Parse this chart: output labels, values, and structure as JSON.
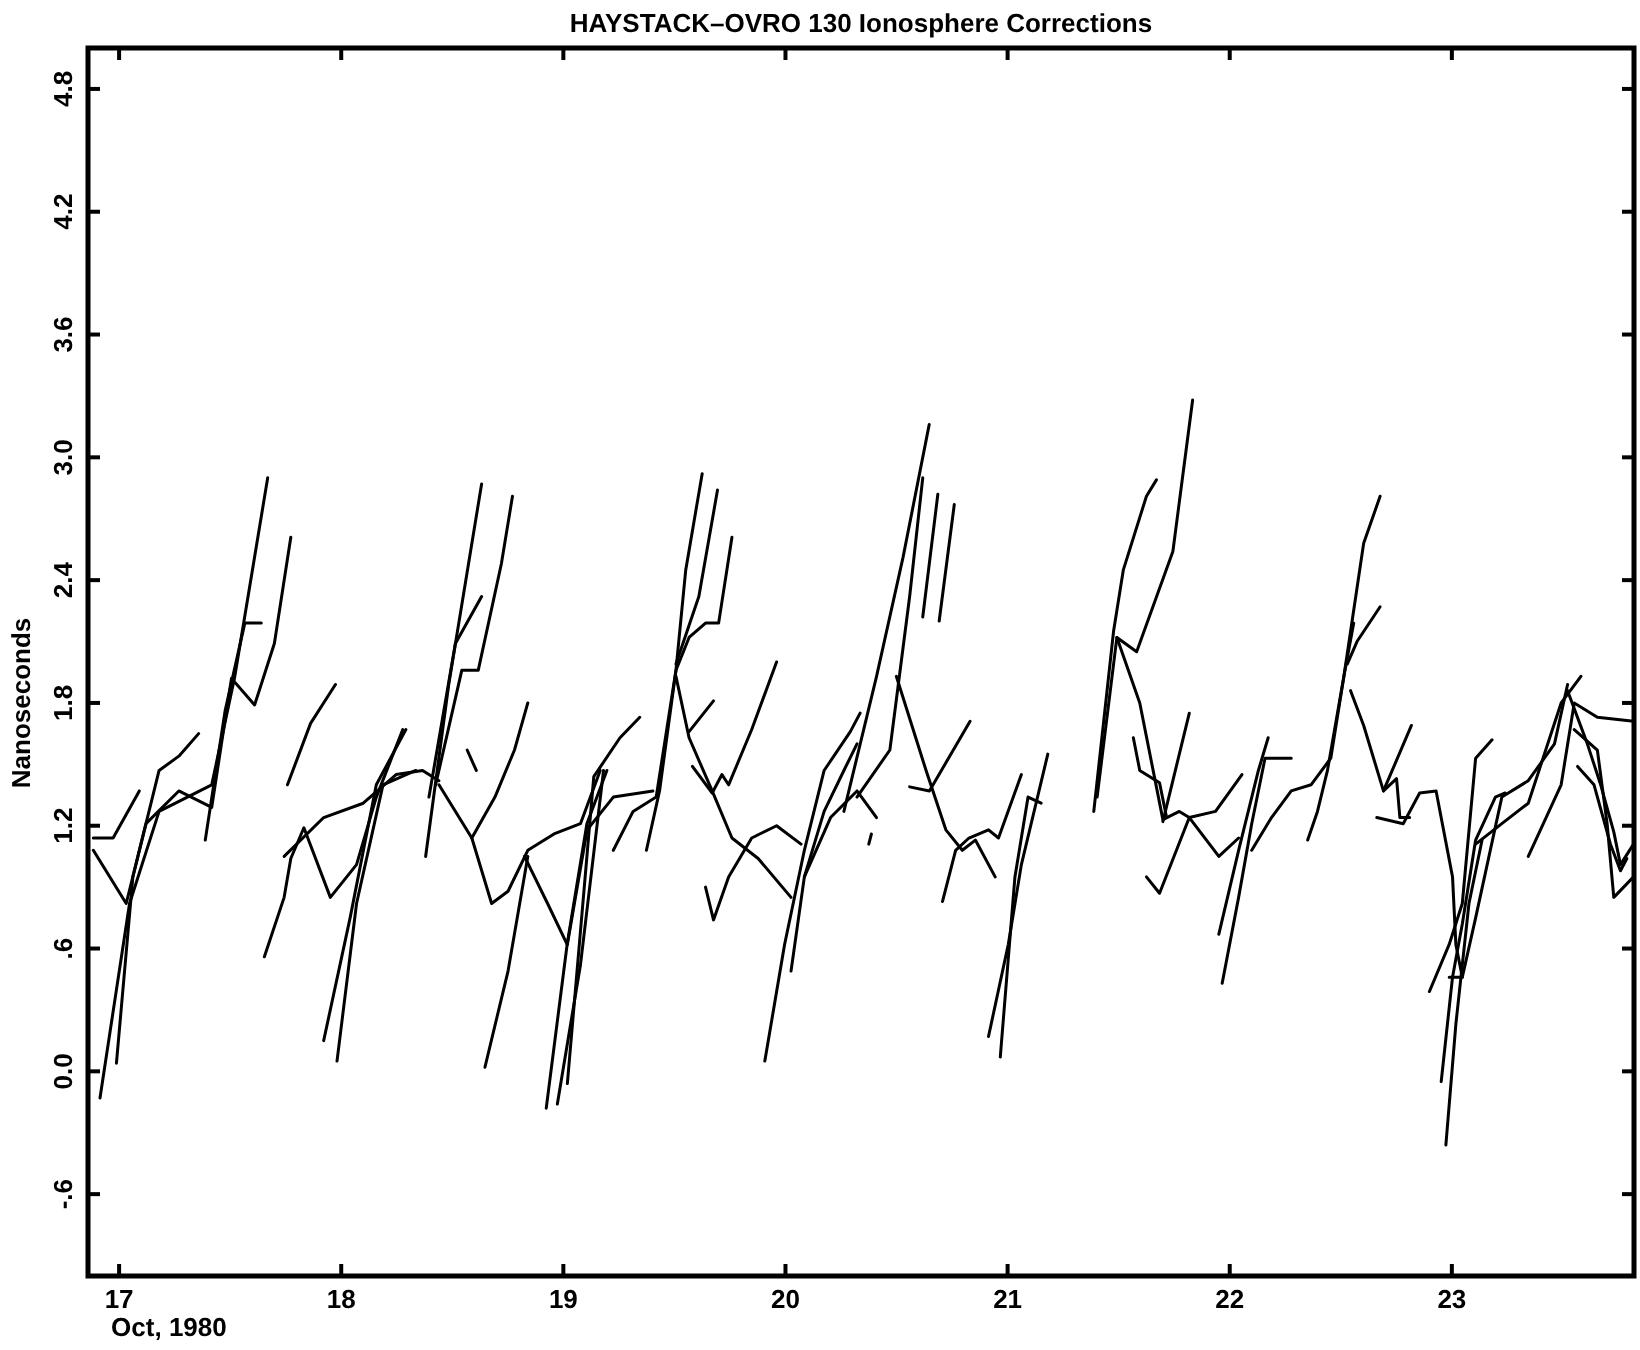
{
  "chart_data": {
    "type": "line",
    "title": "HAYSTACK–OVRO 130 Ionosphere Corrections",
    "xlabel": "Oct, 1980",
    "ylabel": "Nanoseconds",
    "xlim": [
      16.86,
      23.82
    ],
    "ylim": [
      -1.0,
      5.0
    ],
    "xticks": [
      17,
      18,
      19,
      20,
      21,
      22,
      23
    ],
    "yticks": [
      {
        "value": -0.6,
        "label": "-.6"
      },
      {
        "value": 0,
        "label": "0.0"
      },
      {
        "value": 0.6,
        "label": ".6"
      },
      1.2,
      1.8,
      2.4,
      {
        "value": 3,
        "label": "3.0"
      },
      3.6,
      4.2,
      4.8
    ],
    "series": [
      {
        "color": "#000000",
        "x": [
          16.914,
          17.047,
          17.18,
          17.417,
          17.521,
          17.669
        ],
        "values": [
          -0.13,
          0.82,
          1.27,
          1.4,
          1.93,
          2.9
        ]
      },
      {
        "color": "#000000",
        "x": [
          16.884,
          16.973,
          17.091
        ],
        "values": [
          1.14,
          1.14,
          1.37
        ]
      },
      {
        "color": "#000000",
        "x": [
          16.884,
          17.032,
          17.121,
          17.269,
          17.417,
          17.506,
          17.61,
          17.699,
          17.773
        ],
        "values": [
          1.08,
          0.82,
          1.21,
          1.37,
          1.29,
          1.92,
          1.79,
          2.09,
          2.61
        ]
      },
      {
        "color": "#000000",
        "x": [
          16.988,
          17.062,
          17.18,
          17.269,
          17.358
        ],
        "values": [
          0.04,
          0.95,
          1.47,
          1.54,
          1.65
        ]
      },
      {
        "color": "#000000",
        "x": [
          17.388,
          17.477,
          17.566,
          17.64
        ],
        "values": [
          1.13,
          1.76,
          2.19,
          2.19
        ]
      },
      {
        "color": "#000000",
        "x": [
          17.758,
          17.862,
          17.974
        ],
        "values": [
          1.4,
          1.7,
          1.89
        ]
      },
      {
        "color": "#000000",
        "x": [
          17.654,
          17.743,
          17.773,
          17.832,
          17.951,
          18.069,
          18.158,
          18.277
        ],
        "values": [
          0.56,
          0.85,
          1.04,
          1.19,
          0.85,
          1.01,
          1.34,
          1.67
        ]
      },
      {
        "color": "#000000",
        "x": [
          17.743,
          17.921,
          18.099,
          18.247,
          18.366,
          18.44
        ],
        "values": [
          1.05,
          1.24,
          1.31,
          1.45,
          1.47,
          1.42
        ]
      },
      {
        "color": "#000000",
        "x": [
          17.981,
          18.069,
          18.188,
          18.336
        ],
        "values": [
          0.05,
          0.82,
          1.4,
          1.47
        ]
      },
      {
        "color": "#000000",
        "x": [
          17.921,
          18.04,
          18.158,
          18.291
        ],
        "values": [
          0.15,
          0.75,
          1.4,
          1.67
        ]
      },
      {
        "color": "#000000",
        "x": [
          18.38,
          18.484,
          18.632
        ],
        "values": [
          1.05,
          1.89,
          2.87
        ]
      },
      {
        "color": "#000000",
        "x": [
          18.395,
          18.514,
          18.632
        ],
        "values": [
          1.34,
          2.09,
          2.32
        ]
      },
      {
        "color": "#000000",
        "x": [
          18.425,
          18.543,
          18.617,
          18.721,
          18.771
        ],
        "values": [
          1.4,
          1.96,
          1.96,
          2.48,
          2.81
        ]
      },
      {
        "color": "#000000",
        "x": [
          18.44,
          18.588,
          18.677,
          18.751,
          18.84,
          18.958,
          19.077,
          19.166
        ],
        "values": [
          1.4,
          1.14,
          0.82,
          0.88,
          1.08,
          1.16,
          1.21,
          1.47
        ]
      },
      {
        "color": "#000000",
        "x": [
          18.588,
          18.692,
          18.78,
          18.84
        ],
        "values": [
          1.14,
          1.34,
          1.57,
          1.8
        ]
      },
      {
        "color": "#000000",
        "x": [
          18.567,
          18.608
        ],
        "values": [
          1.57,
          1.47
        ]
      },
      {
        "color": "#000000",
        "x": [
          18.647,
          18.751,
          18.84
        ],
        "values": [
          0.02,
          0.49,
          1.05
        ]
      },
      {
        "color": "#000000",
        "x": [
          18.825,
          18.929,
          19.017
        ],
        "values": [
          1.05,
          0.82,
          0.62
        ]
      },
      {
        "color": "#000000",
        "x": [
          18.923,
          19.017,
          19.106,
          19.196
        ],
        "values": [
          -0.18,
          0.62,
          1.21,
          1.47
        ]
      },
      {
        "color": "#000000",
        "x": [
          18.973,
          19.077,
          19.181
        ],
        "values": [
          -0.16,
          0.52,
          1.47
        ]
      },
      {
        "color": "#000000",
        "x": [
          19.018,
          19.137,
          19.255,
          19.344
        ],
        "values": [
          -0.06,
          1.44,
          1.63,
          1.73
        ]
      },
      {
        "color": "#000000",
        "x": [
          19.018,
          19.107,
          19.225,
          19.403
        ],
        "values": [
          0.62,
          1.18,
          1.34,
          1.37
        ]
      },
      {
        "color": "#000000",
        "x": [
          19.225,
          19.314,
          19.418,
          19.507,
          19.551,
          19.625
        ],
        "values": [
          1.08,
          1.27,
          1.34,
          1.96,
          2.45,
          2.92
        ]
      },
      {
        "color": "#000000",
        "x": [
          19.374,
          19.433,
          19.507,
          19.566,
          19.64,
          19.699,
          19.759
        ],
        "values": [
          1.08,
          1.37,
          1.96,
          2.12,
          2.19,
          2.19,
          2.61
        ]
      },
      {
        "color": "#000000",
        "x": [
          19.507,
          19.61,
          19.694
        ],
        "values": [
          1.99,
          2.32,
          2.84
        ]
      },
      {
        "color": "#000000",
        "x": [
          19.507,
          19.566,
          19.67,
          19.759,
          19.877,
          20.025
        ],
        "values": [
          1.93,
          1.63,
          1.37,
          1.14,
          1.04,
          0.85
        ]
      },
      {
        "color": "#000000",
        "x": [
          19.566,
          19.676
        ],
        "values": [
          1.66,
          1.81
        ]
      },
      {
        "color": "#000000",
        "x": [
          19.581,
          19.67,
          19.714,
          19.744,
          19.848,
          19.96
        ],
        "values": [
          1.49,
          1.36,
          1.45,
          1.4,
          1.67,
          2.0
        ]
      },
      {
        "color": "#000000",
        "x": [
          19.64,
          19.676,
          19.744,
          19.848,
          19.96,
          20.07
        ],
        "values": [
          0.9,
          0.74,
          0.95,
          1.14,
          1.2,
          1.11
        ]
      },
      {
        "color": "#000000",
        "x": [
          19.907,
          19.996,
          20.085,
          20.174,
          20.292,
          20.336
        ],
        "values": [
          0.05,
          0.62,
          1.08,
          1.47,
          1.66,
          1.75
        ]
      },
      {
        "color": "#000000",
        "x": [
          20.025,
          20.085,
          20.174,
          20.263,
          20.322
        ],
        "values": [
          0.49,
          0.95,
          1.27,
          1.47,
          1.6
        ]
      },
      {
        "color": "#000000",
        "x": [
          20.085,
          20.203,
          20.322,
          20.41
        ],
        "values": [
          0.95,
          1.24,
          1.37,
          1.24
        ]
      },
      {
        "color": "#000000",
        "x": [
          20.263,
          20.41,
          20.529,
          20.647
        ],
        "values": [
          1.27,
          1.93,
          2.51,
          3.16
        ]
      },
      {
        "color": "#000000",
        "x": [
          20.322,
          20.47,
          20.559,
          20.618
        ],
        "values": [
          1.34,
          1.57,
          2.32,
          2.9
        ]
      },
      {
        "color": "#000000",
        "x": [
          20.618,
          20.686
        ],
        "values": [
          2.22,
          2.82
        ]
      },
      {
        "color": "#000000",
        "x": [
          20.692,
          20.76
        ],
        "values": [
          2.2,
          2.77
        ]
      },
      {
        "color": "#000000",
        "x": [
          20.499,
          20.633,
          20.722,
          20.796,
          20.855,
          20.944
        ],
        "values": [
          1.93,
          1.47,
          1.18,
          1.08,
          1.13,
          0.95
        ]
      },
      {
        "color": "#000000",
        "x": [
          20.559,
          20.648,
          20.831
        ],
        "values": [
          1.39,
          1.37,
          1.71
        ]
      },
      {
        "color": "#000000",
        "x": [
          20.707,
          20.766,
          20.826,
          20.914,
          20.959,
          21.062
        ],
        "values": [
          0.83,
          1.08,
          1.14,
          1.18,
          1.14,
          1.45
        ]
      },
      {
        "color": "#000000",
        "x": [
          20.375,
          20.387
        ],
        "values": [
          1.11,
          1.16
        ]
      },
      {
        "color": "#000000",
        "x": [
          20.914,
          21.003,
          21.062,
          21.181
        ],
        "values": [
          0.17,
          0.62,
          1.01,
          1.55
        ]
      },
      {
        "color": "#000000",
        "x": [
          20.967,
          21.033,
          21.092,
          21.151
        ],
        "values": [
          0.07,
          0.95,
          1.34,
          1.31
        ]
      },
      {
        "color": "#000000",
        "x": [
          21.388,
          21.477,
          21.521,
          21.625,
          21.67
        ],
        "values": [
          1.27,
          2.15,
          2.45,
          2.81,
          2.89
        ]
      },
      {
        "color": "#000000",
        "x": [
          21.403,
          21.492,
          21.581,
          21.744,
          21.833
        ],
        "values": [
          1.34,
          2.12,
          2.05,
          2.54,
          3.28
        ]
      },
      {
        "color": "#000000",
        "x": [
          21.492,
          21.595,
          21.699,
          21.773,
          21.818,
          21.936,
          22.055
        ],
        "values": [
          2.12,
          1.8,
          1.23,
          1.27,
          1.24,
          1.27,
          1.45
        ]
      },
      {
        "color": "#000000",
        "x": [
          21.566,
          21.595,
          21.684,
          21.714
        ],
        "values": [
          1.63,
          1.47,
          1.41,
          1.25
        ]
      },
      {
        "color": "#000000",
        "x": [
          21.625,
          21.684,
          21.818,
          21.951,
          22.04
        ],
        "values": [
          0.95,
          0.87,
          1.24,
          1.05,
          1.14
        ]
      },
      {
        "color": "#000000",
        "x": [
          21.699,
          21.818
        ],
        "values": [
          1.22,
          1.75
        ]
      },
      {
        "color": "#000000",
        "x": [
          21.951,
          22.04,
          22.129,
          22.173
        ],
        "values": [
          0.67,
          1.08,
          1.47,
          1.63
        ]
      },
      {
        "color": "#000000",
        "x": [
          21.966,
          22.04,
          22.099,
          22.159,
          22.277
        ],
        "values": [
          0.43,
          0.85,
          1.21,
          1.53,
          1.53
        ]
      },
      {
        "color": "#000000",
        "x": [
          22.099,
          22.188,
          22.277,
          22.366,
          22.455,
          22.514,
          22.558
        ],
        "values": [
          1.08,
          1.24,
          1.37,
          1.4,
          1.53,
          1.93,
          2.19
        ]
      },
      {
        "color": "#000000",
        "x": [
          22.351,
          22.395,
          22.44,
          22.514,
          22.603,
          22.677
        ],
        "values": [
          1.13,
          1.27,
          1.47,
          1.93,
          2.58,
          2.81
        ]
      },
      {
        "color": "#000000",
        "x": [
          22.529,
          22.573,
          22.677
        ],
        "values": [
          1.99,
          2.1,
          2.27
        ]
      },
      {
        "color": "#000000",
        "x": [
          22.544,
          22.603,
          22.692,
          22.751,
          22.766,
          22.81
        ],
        "values": [
          1.86,
          1.69,
          1.37,
          1.43,
          1.24,
          1.24
        ]
      },
      {
        "color": "#000000",
        "x": [
          22.692,
          22.818
        ],
        "values": [
          1.37,
          1.69
        ]
      },
      {
        "color": "#000000",
        "x": [
          22.662,
          22.781,
          22.855,
          22.929,
          23.003,
          23.018,
          23.047
        ],
        "values": [
          1.24,
          1.21,
          1.36,
          1.37,
          0.95,
          0.62,
          0.46
        ]
      },
      {
        "color": "#000000",
        "x": [
          22.899,
          22.988,
          23.047,
          23.107,
          23.181
        ],
        "values": [
          0.39,
          0.62,
          0.82,
          1.53,
          1.62
        ]
      },
      {
        "color": "#000000",
        "x": [
          22.952,
          23.003,
          23.047,
          23.107,
          23.196,
          23.24
        ],
        "values": [
          -0.05,
          0.46,
          0.72,
          1.13,
          1.34,
          1.36
        ]
      },
      {
        "color": "#000000",
        "x": [
          22.973,
          23.018,
          23.077,
          23.136
        ],
        "values": [
          -0.36,
          0.23,
          0.82,
          1.13
        ]
      },
      {
        "color": "#000000",
        "x": [
          22.988,
          23.047,
          23.107,
          23.225,
          23.344,
          23.462,
          23.521
        ],
        "values": [
          0.46,
          0.46,
          0.75,
          1.34,
          1.42,
          1.6,
          1.89
        ]
      },
      {
        "color": "#000000",
        "x": [
          23.107,
          23.225,
          23.344,
          23.492,
          23.581
        ],
        "values": [
          1.11,
          1.21,
          1.31,
          1.8,
          1.93
        ]
      },
      {
        "color": "#000000",
        "x": [
          23.344,
          23.492,
          23.551,
          23.655,
          23.818
        ],
        "values": [
          1.05,
          1.4,
          1.8,
          1.73,
          1.71
        ]
      },
      {
        "color": "#000000",
        "x": [
          23.521,
          23.61,
          23.67,
          23.729,
          23.759,
          23.818
        ],
        "values": [
          1.86,
          1.6,
          1.4,
          1.17,
          1.01,
          1.11
        ]
      },
      {
        "color": "#000000",
        "x": [
          23.551,
          23.655,
          23.699,
          23.729,
          23.818
        ],
        "values": [
          1.67,
          1.57,
          1.21,
          0.85,
          0.95
        ]
      },
      {
        "color": "#000000",
        "x": [
          23.566,
          23.64,
          23.714,
          23.759,
          23.788
        ],
        "values": [
          1.49,
          1.4,
          1.11,
          0.98,
          1.04
        ]
      }
    ]
  }
}
